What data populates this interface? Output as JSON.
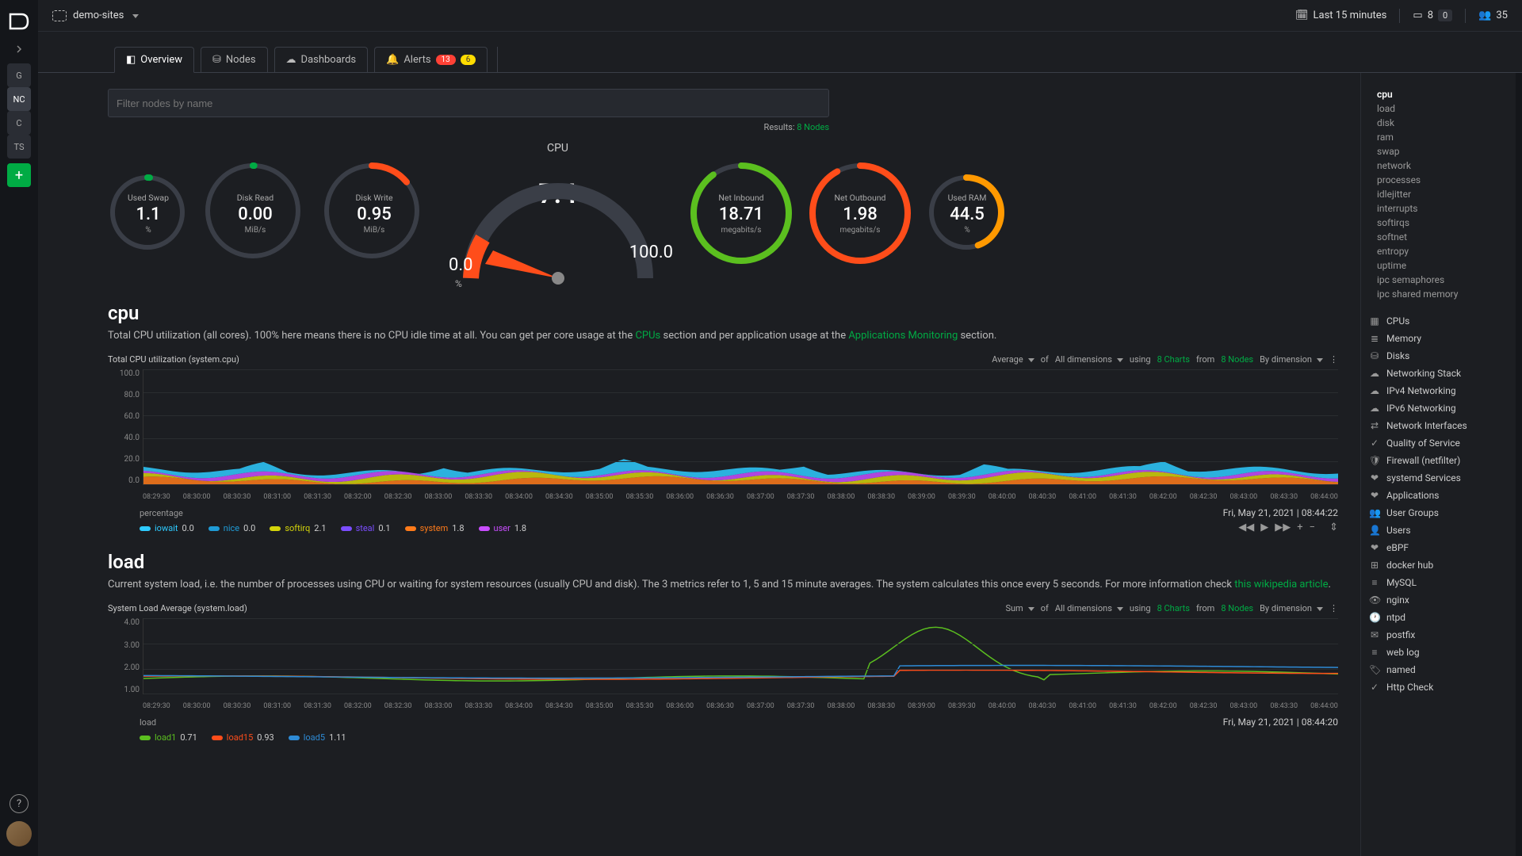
{
  "workspace": {
    "name": "demo-sites"
  },
  "topbar": {
    "time_range": "Last 15 minutes",
    "nodes_count": "8",
    "nodes_offline": "0",
    "users_count": "35"
  },
  "sidebar_left": {
    "items": [
      "G",
      "NC",
      "C",
      "TS"
    ],
    "active_index": 1
  },
  "tabs": {
    "overview": "Overview",
    "nodes": "Nodes",
    "dashboards": "Dashboards",
    "alerts": "Alerts",
    "alerts_critical": "13",
    "alerts_warning": "6"
  },
  "filter": {
    "placeholder": "Filter nodes by name",
    "results_label": "Results:",
    "results_value": "8 Nodes"
  },
  "gauges": {
    "used_swap": {
      "label": "Used Swap",
      "value": "1.1",
      "unit": "%",
      "pct": 1.1,
      "color": "#00ab44"
    },
    "disk_read": {
      "label": "Disk Read",
      "value": "0.00",
      "unit": "MiB/s",
      "pct": 0.5,
      "color": "#00ab44"
    },
    "disk_write": {
      "label": "Disk Write",
      "value": "0.95",
      "unit": "MiB/s",
      "pct": 14,
      "color": "#ff4d1a"
    },
    "cpu": {
      "label": "CPU",
      "value": "7.4",
      "lo": "0.0",
      "hi": "100.0",
      "pct_unit": "%"
    },
    "net_in": {
      "label": "Net Inbound",
      "value": "18.71",
      "unit": "megabits/s",
      "pct": 90,
      "color": "#5bbf1f"
    },
    "net_out": {
      "label": "Net Outbound",
      "value": "1.98",
      "unit": "megabits/s",
      "pct": 92,
      "color": "#ff4d1a"
    },
    "used_ram": {
      "label": "Used RAM",
      "value": "44.5",
      "unit": "%",
      "pct": 44.5,
      "color": "#ff9900"
    }
  },
  "cpu_section": {
    "title": "cpu",
    "desc_a": "Total CPU utilization (all cores). 100% here means there is no CPU idle time at all. You can get per core usage at the ",
    "link_a": "CPUs",
    "desc_b": " section and per application usage at the ",
    "link_b": "Applications Monitoring",
    "desc_c": " section.",
    "chart_title": "Total CPU utilization (system.cpu)",
    "agg": "Average",
    "of": "of",
    "dims": "All dimensions",
    "using": "using",
    "charts": "8 Charts",
    "from": "from",
    "nodes": "8 Nodes",
    "by": "By dimension",
    "y_ticks": [
      "100.0",
      "80.0",
      "60.0",
      "40.0",
      "20.0",
      "0.0"
    ],
    "y_unit": "percentage",
    "timestamp": "Fri, May 21, 2021 | 08:44:22",
    "legend": [
      {
        "name": "iowait",
        "val": "0.0",
        "color": "#2ecbff"
      },
      {
        "name": "nice",
        "val": "0.0",
        "color": "#1f9bd6"
      },
      {
        "name": "softirq",
        "val": "2.1",
        "color": "#d4d40a"
      },
      {
        "name": "steal",
        "val": "0.1",
        "color": "#7b4dff"
      },
      {
        "name": "system",
        "val": "1.8",
        "color": "#ff7b1a"
      },
      {
        "name": "user",
        "val": "1.8",
        "color": "#c94dff"
      }
    ]
  },
  "load_section": {
    "title": "load",
    "desc_a": "Current system load, i.e. the number of processes using CPU or waiting for system resources (usually CPU and disk). The 3 metrics refer to 1, 5 and 15 minute averages. The system calculates this once every 5 seconds. For more information check ",
    "link_a": "this wikipedia article",
    "desc_b": ".",
    "chart_title": "System Load Average (system.load)",
    "agg": "Sum",
    "of": "of",
    "dims": "All dimensions",
    "using": "using",
    "charts": "8 Charts",
    "from": "from",
    "nodes": "8 Nodes",
    "by": "By dimension",
    "y_ticks": [
      "4.00",
      "3.00",
      "2.00",
      "1.00"
    ],
    "y_unit": "load",
    "timestamp": "Fri, May 21, 2021 | 08:44:20",
    "legend": [
      {
        "name": "load1",
        "val": "0.71",
        "color": "#5bbf1f"
      },
      {
        "name": "load15",
        "val": "0.93",
        "color": "#ff4d1a"
      },
      {
        "name": "load5",
        "val": "1.11",
        "color": "#2e8bd6"
      }
    ]
  },
  "x_ticks": [
    "08:29:30",
    "08:30:00",
    "08:30:30",
    "08:31:00",
    "08:31:30",
    "08:32:00",
    "08:32:30",
    "08:33:00",
    "08:33:30",
    "08:34:00",
    "08:34:30",
    "08:35:00",
    "08:35:30",
    "08:36:00",
    "08:36:30",
    "08:37:00",
    "08:37:30",
    "08:38:00",
    "08:38:30",
    "08:39:00",
    "08:39:30",
    "08:40:00",
    "08:40:30",
    "08:41:00",
    "08:41:30",
    "08:42:00",
    "08:42:30",
    "08:43:00",
    "08:43:30",
    "08:44:00"
  ],
  "right_nav": {
    "sub": [
      "cpu",
      "load",
      "disk",
      "ram",
      "swap",
      "network",
      "processes",
      "idlejitter",
      "interrupts",
      "softirqs",
      "softnet",
      "entropy",
      "uptime",
      "ipc semaphores",
      "ipc shared memory"
    ],
    "main": [
      {
        "icon": "▦",
        "label": "CPUs"
      },
      {
        "icon": "≣",
        "label": "Memory"
      },
      {
        "icon": "⛁",
        "label": "Disks"
      },
      {
        "icon": "☁",
        "label": "Networking Stack"
      },
      {
        "icon": "☁",
        "label": "IPv4 Networking"
      },
      {
        "icon": "☁",
        "label": "IPv6 Networking"
      },
      {
        "icon": "⇄",
        "label": "Network Interfaces"
      },
      {
        "icon": "✓",
        "label": "Quality of Service"
      },
      {
        "icon": "🛡",
        "label": "Firewall (netfilter)"
      },
      {
        "icon": "❤",
        "label": "systemd Services"
      },
      {
        "icon": "❤",
        "label": "Applications"
      },
      {
        "icon": "👥",
        "label": "User Groups"
      },
      {
        "icon": "👤",
        "label": "Users"
      },
      {
        "icon": "❤",
        "label": "eBPF"
      },
      {
        "icon": "⊞",
        "label": "docker hub"
      },
      {
        "icon": "≡",
        "label": "MySQL"
      },
      {
        "icon": "👁",
        "label": "nginx"
      },
      {
        "icon": "🕐",
        "label": "ntpd"
      },
      {
        "icon": "✉",
        "label": "postfix"
      },
      {
        "icon": "≡",
        "label": "web log"
      },
      {
        "icon": "🏷",
        "label": "named"
      },
      {
        "icon": "✓",
        "label": "Http Check"
      }
    ]
  }
}
